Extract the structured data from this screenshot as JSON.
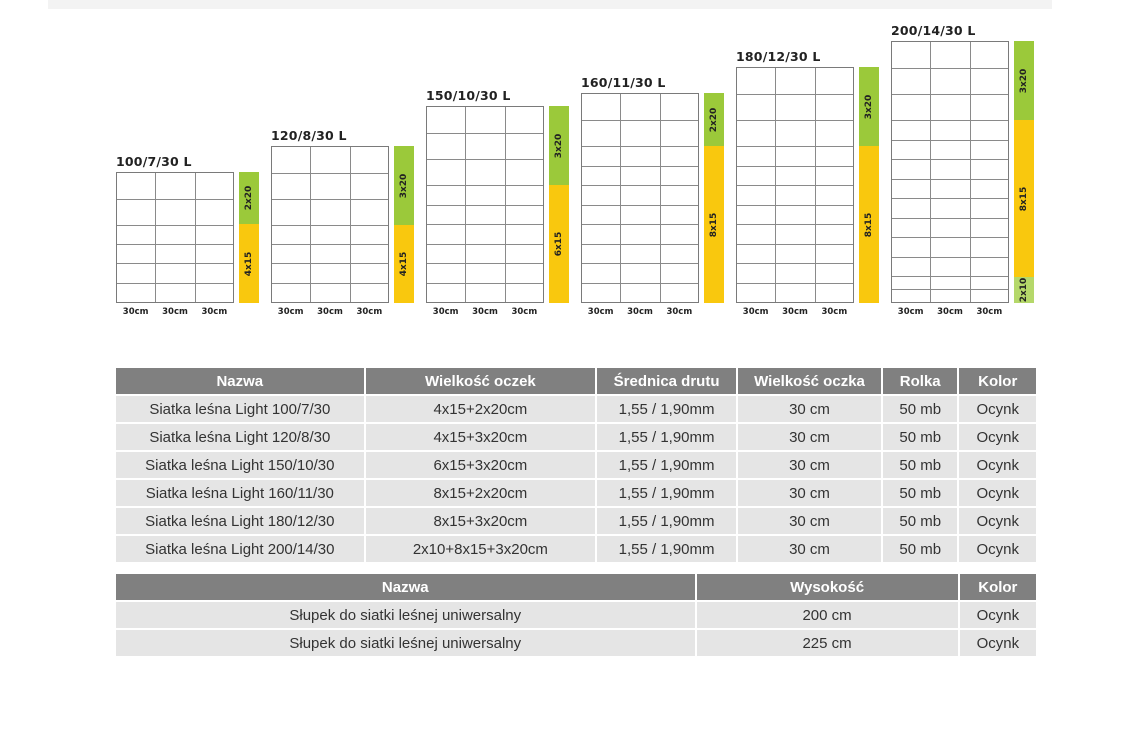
{
  "colors": {
    "green": "#9bc93a",
    "yellow": "#f9c80e",
    "light_green": "#b5d86a",
    "header_bg": "#808080",
    "row_bg": "#e5e5e5"
  },
  "diagrams": [
    {
      "title": "100/7/30 L",
      "column_labels": [
        "30cm",
        "30cm",
        "30cm"
      ],
      "segments": [
        {
          "label": "2x20",
          "count": 2,
          "size": 20,
          "color": "green"
        },
        {
          "label": "4x15",
          "count": 4,
          "size": 15,
          "color": "yellow"
        }
      ]
    },
    {
      "title": "120/8/30 L",
      "column_labels": [
        "30cm",
        "30cm",
        "30cm"
      ],
      "segments": [
        {
          "label": "3x20",
          "count": 3,
          "size": 20,
          "color": "green"
        },
        {
          "label": "4x15",
          "count": 4,
          "size": 15,
          "color": "yellow"
        }
      ]
    },
    {
      "title": "150/10/30 L",
      "column_labels": [
        "30cm",
        "30cm",
        "30cm"
      ],
      "segments": [
        {
          "label": "3x20",
          "count": 3,
          "size": 20,
          "color": "green"
        },
        {
          "label": "6x15",
          "count": 6,
          "size": 15,
          "color": "yellow"
        }
      ]
    },
    {
      "title": "160/11/30 L",
      "column_labels": [
        "30cm",
        "30cm",
        "30cm"
      ],
      "segments": [
        {
          "label": "2x20",
          "count": 2,
          "size": 20,
          "color": "green"
        },
        {
          "label": "8x15",
          "count": 8,
          "size": 15,
          "color": "yellow"
        }
      ]
    },
    {
      "title": "180/12/30 L",
      "column_labels": [
        "30cm",
        "30cm",
        "30cm"
      ],
      "segments": [
        {
          "label": "3x20",
          "count": 3,
          "size": 20,
          "color": "green"
        },
        {
          "label": "8x15",
          "count": 8,
          "size": 15,
          "color": "yellow"
        }
      ]
    },
    {
      "title": "200/14/30 L",
      "column_labels": [
        "30cm",
        "30cm",
        "30cm"
      ],
      "segments": [
        {
          "label": "3x20",
          "count": 3,
          "size": 20,
          "color": "green"
        },
        {
          "label": "8x15",
          "count": 8,
          "size": 15,
          "color": "yellow"
        },
        {
          "label": "2x10",
          "count": 2,
          "size": 10,
          "color": "light_green"
        }
      ]
    }
  ],
  "table1": {
    "headers": [
      "Nazwa",
      "Wielkość oczek",
      "Średnica drutu",
      "Wielkość oczka",
      "Rolka",
      "Kolor"
    ],
    "rows": [
      [
        "Siatka leśna Light 100/7/30",
        "4x15+2x20cm",
        "1,55 / 1,90mm",
        "30 cm",
        "50 mb",
        "Ocynk"
      ],
      [
        "Siatka leśna Light 120/8/30",
        "4x15+3x20cm",
        "1,55 / 1,90mm",
        "30 cm",
        "50 mb",
        "Ocynk"
      ],
      [
        "Siatka leśna Light 150/10/30",
        "6x15+3x20cm",
        "1,55 / 1,90mm",
        "30 cm",
        "50 mb",
        "Ocynk"
      ],
      [
        "Siatka leśna Light 160/11/30",
        "8x15+2x20cm",
        "1,55 / 1,90mm",
        "30 cm",
        "50 mb",
        "Ocynk"
      ],
      [
        "Siatka leśna Light 180/12/30",
        "8x15+3x20cm",
        "1,55 / 1,90mm",
        "30 cm",
        "50 mb",
        "Ocynk"
      ],
      [
        "Siatka leśna Light 200/14/30",
        "2x10+8x15+3x20cm",
        "1,55 / 1,90mm",
        "30 cm",
        "50 mb",
        "Ocynk"
      ]
    ]
  },
  "table2": {
    "headers": [
      "Nazwa",
      "Wysokość",
      "Kolor"
    ],
    "rows": [
      [
        "Słupek do siatki leśnej uniwersalny",
        "200 cm",
        "Ocynk"
      ],
      [
        "Słupek do siatki leśnej uniwersalny",
        "225 cm",
        "Ocynk"
      ]
    ]
  }
}
